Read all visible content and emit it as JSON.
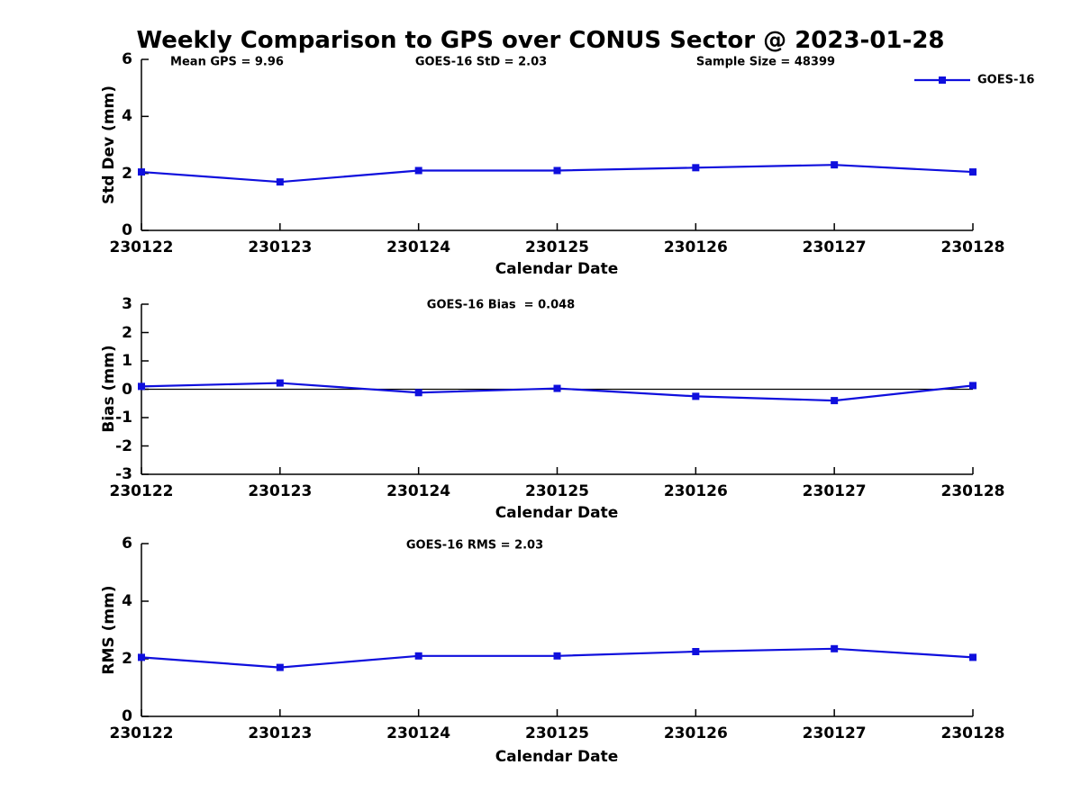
{
  "title": "Weekly Comparison to GPS over CONUS Sector @ 2023-01-28",
  "legend": {
    "label": "GOES-16",
    "color": "#0f0fdd",
    "marker": "square",
    "position": "top-right",
    "boxed": false
  },
  "chart_data": [
    {
      "type": "line",
      "title": "",
      "categories": [
        "230122",
        "230123",
        "230124",
        "230125",
        "230126",
        "230127",
        "230128"
      ],
      "series": [
        {
          "name": "GOES-16",
          "values": [
            2.05,
            1.7,
            2.1,
            2.1,
            2.2,
            2.3,
            2.05
          ],
          "color": "#0f0fdd",
          "marker": "square"
        }
      ],
      "xlabel": "Calendar Date",
      "ylabel": "Std Dev (mm)",
      "ylim": [
        0,
        6
      ],
      "yticks": [
        0,
        2,
        4,
        6
      ],
      "grid": false,
      "zero_line": false,
      "legend_position": "top-right",
      "annotations": [
        {
          "text": "Mean GPS = 9.96"
        },
        {
          "text": "GOES-16 StD = 2.03"
        },
        {
          "text": "Sample Size = 48399"
        }
      ]
    },
    {
      "type": "line",
      "title": "",
      "categories": [
        "230122",
        "230123",
        "230124",
        "230125",
        "230126",
        "230127",
        "230128"
      ],
      "series": [
        {
          "name": "GOES-16",
          "values": [
            0.1,
            0.22,
            -0.12,
            0.03,
            -0.25,
            -0.4,
            0.13
          ],
          "color": "#0f0fdd",
          "marker": "square"
        }
      ],
      "xlabel": "Calendar Date",
      "ylabel": "Bias (mm)",
      "ylim": [
        -3,
        3
      ],
      "yticks": [
        -3,
        -2,
        -1,
        0,
        1,
        2,
        3
      ],
      "grid": false,
      "zero_line": true,
      "legend_position": "none",
      "annotations": [
        {
          "text": "GOES-16 Bias  = 0.048"
        }
      ]
    },
    {
      "type": "line",
      "title": "",
      "categories": [
        "230122",
        "230123",
        "230124",
        "230125",
        "230126",
        "230127",
        "230128"
      ],
      "series": [
        {
          "name": "GOES-16",
          "values": [
            2.05,
            1.7,
            2.1,
            2.1,
            2.25,
            2.35,
            2.05
          ],
          "color": "#0f0fdd",
          "marker": "square"
        }
      ],
      "xlabel": "Calendar Date",
      "ylabel": "RMS (mm)",
      "ylim": [
        0,
        6
      ],
      "yticks": [
        0,
        2,
        4,
        6
      ],
      "grid": false,
      "zero_line": false,
      "legend_position": "none",
      "annotations": [
        {
          "text": "GOES-16 RMS = 2.03"
        }
      ]
    }
  ]
}
